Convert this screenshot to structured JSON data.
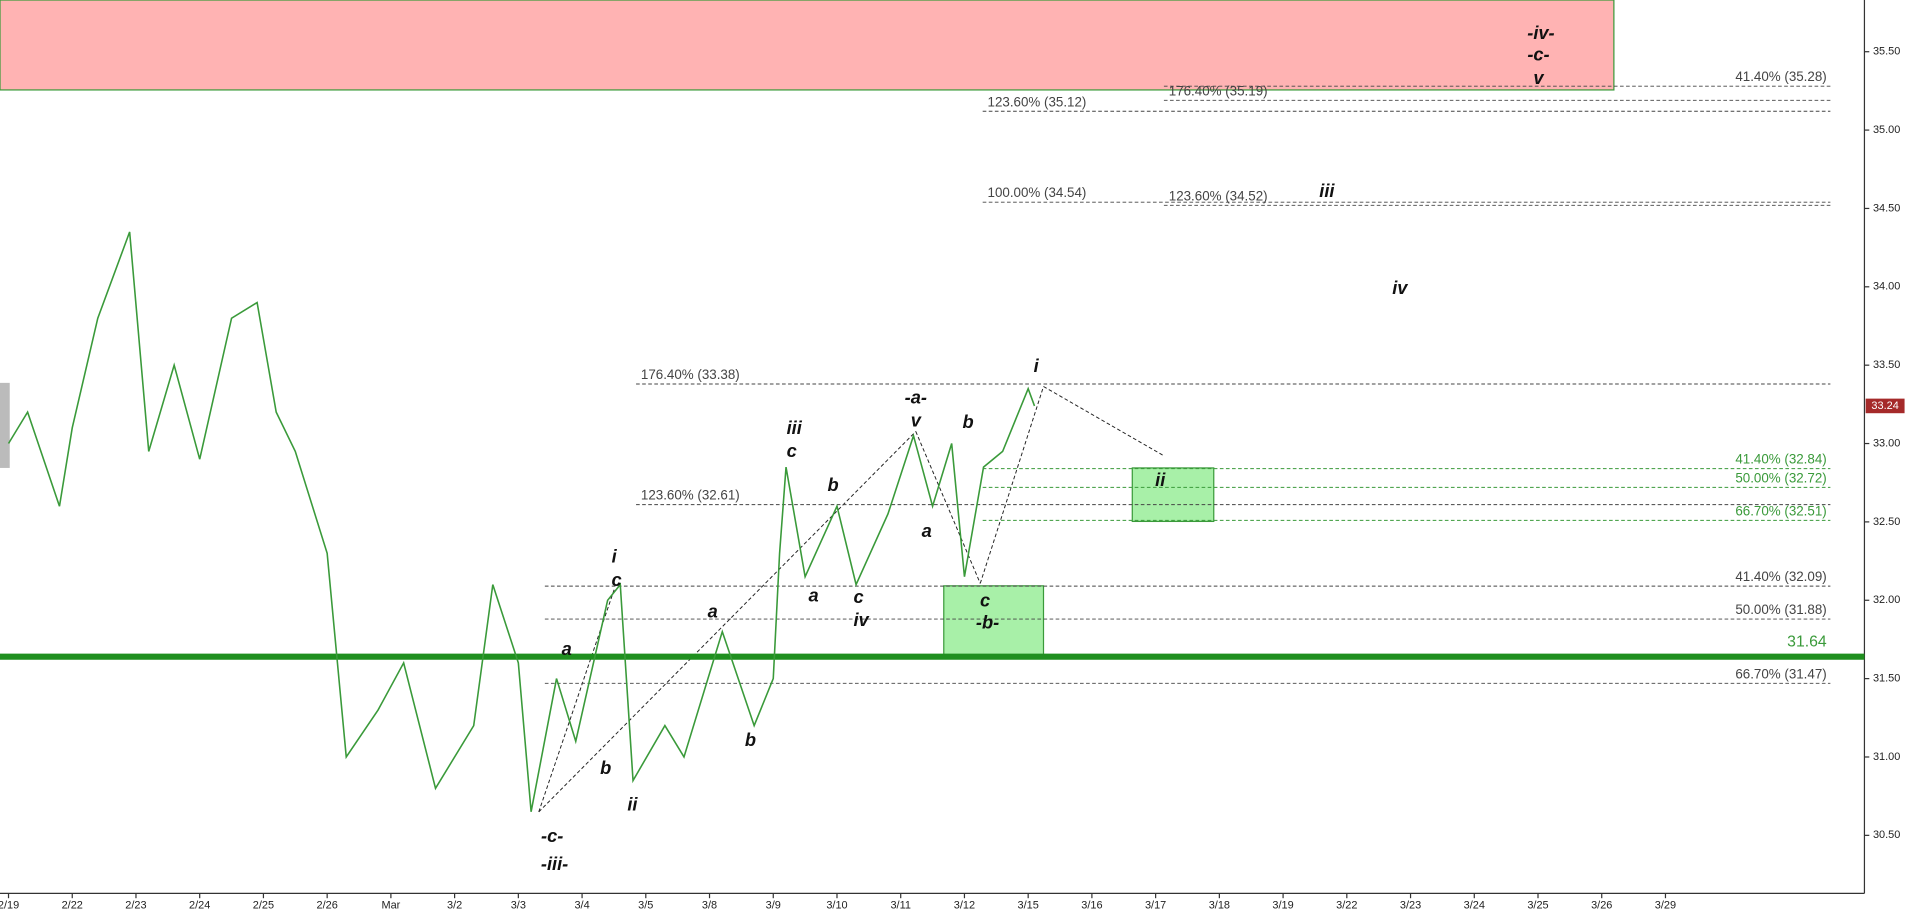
{
  "chart_data": {
    "type": "line",
    "categories": [
      "2/19",
      "2/22",
      "2/23",
      "2/24",
      "2/25",
      "2/26",
      "Mar",
      "3/2",
      "3/3",
      "3/4",
      "3/5",
      "3/8",
      "3/9",
      "3/10",
      "3/11",
      "3/12",
      "3/15",
      "3/16",
      "3/17",
      "3/18",
      "3/19",
      "3/22",
      "3/23",
      "3/24",
      "3/25",
      "3/26",
      "3/29"
    ],
    "series": [
      {
        "name": "price",
        "color": "#3a9a3a",
        "x": [
          0,
          0.3,
          0.8,
          1.0,
          1.4,
          1.9,
          2.2,
          2.6,
          3.0,
          3.5,
          3.9,
          4.2,
          4.5,
          5.0,
          5.3,
          5.8,
          6.2,
          6.7,
          7.3,
          7.6,
          8.0,
          8.2,
          8.6,
          8.9,
          9.4,
          9.6,
          9.8,
          10.3,
          10.6,
          11.2,
          11.7,
          12.0,
          12.1,
          12.2,
          12.5,
          13.0,
          13.3,
          13.8,
          14.2,
          14.5,
          14.8,
          15.0,
          15.3,
          15.6,
          16.0,
          16.1
        ],
        "values": [
          33.0,
          33.2,
          32.6,
          33.1,
          33.8,
          34.35,
          32.95,
          33.5,
          32.9,
          33.8,
          33.9,
          33.2,
          32.95,
          32.3,
          31.0,
          31.3,
          31.6,
          30.8,
          31.2,
          32.1,
          31.6,
          30.65,
          31.5,
          31.1,
          32.0,
          32.1,
          30.85,
          31.2,
          31.0,
          31.8,
          31.2,
          31.5,
          32.3,
          32.85,
          32.15,
          32.6,
          32.1,
          32.55,
          33.05,
          32.6,
          33.0,
          32.15,
          32.85,
          32.95,
          33.35,
          33.24
        ]
      }
    ],
    "ylim": [
      30.13,
      35.83
    ],
    "yticks": [
      {
        "value": 30.5,
        "label": "30.50"
      },
      {
        "value": 31.0,
        "label": "31.00"
      },
      {
        "value": 31.5,
        "label": "31.50"
      },
      {
        "value": 32.0,
        "label": "32.00"
      },
      {
        "value": 32.5,
        "label": "32.50"
      },
      {
        "value": 33.0,
        "label": "33.00"
      },
      {
        "value": 33.5,
        "label": "33.50"
      },
      {
        "value": 34.0,
        "label": "34.00"
      },
      {
        "value": 34.5,
        "label": "34.50"
      },
      {
        "value": 35.0,
        "label": "35.00"
      },
      {
        "value": 35.5,
        "label": "35.50"
      }
    ],
    "last_price": 33.24,
    "support": 31.64,
    "levels": [
      {
        "label": "41.40% (35.28)",
        "value": 35.28,
        "color": "#444"
      },
      {
        "label": "176.40% (35.19)",
        "value": 35.19,
        "color": "#444"
      },
      {
        "label": "123.60% (35.12)",
        "value": 35.12,
        "color": "#444"
      },
      {
        "label": "100.00% (34.54)",
        "value": 34.54,
        "color": "#444"
      },
      {
        "label": "123.60% (34.52)",
        "value": 34.52,
        "color": "#444"
      },
      {
        "label": "176.40% (33.38)",
        "value": 33.38,
        "color": "#444"
      },
      {
        "label": "123.60% (32.61)",
        "value": 32.61,
        "color": "#444"
      },
      {
        "label": "41.40% (32.09)",
        "value": 32.09,
        "color": "#444"
      },
      {
        "label": "50.00% (31.88)",
        "value": 31.88,
        "color": "#444"
      },
      {
        "label": "66.70% (31.47)",
        "value": 31.47,
        "color": "#444"
      },
      {
        "label": "41.40% (32.84)",
        "value": 32.84,
        "color": "#3a9a3a"
      },
      {
        "label": "50.00% (32.72)",
        "value": 32.72,
        "color": "#3a9a3a"
      },
      {
        "label": "66.70% (32.51)",
        "value": 32.51,
        "color": "#3a9a3a"
      }
    ],
    "wave_labels": [
      "-iv-",
      "-c-",
      "v",
      "iii",
      "iv",
      "i",
      "-a-",
      "v",
      "b",
      "iii",
      "c",
      "b",
      "ii",
      "a",
      "a",
      "c",
      "iv",
      "c",
      "-b-",
      "i",
      "c",
      "a",
      "a",
      "b",
      "b",
      "ii",
      "-c-",
      "-iii-"
    ]
  }
}
